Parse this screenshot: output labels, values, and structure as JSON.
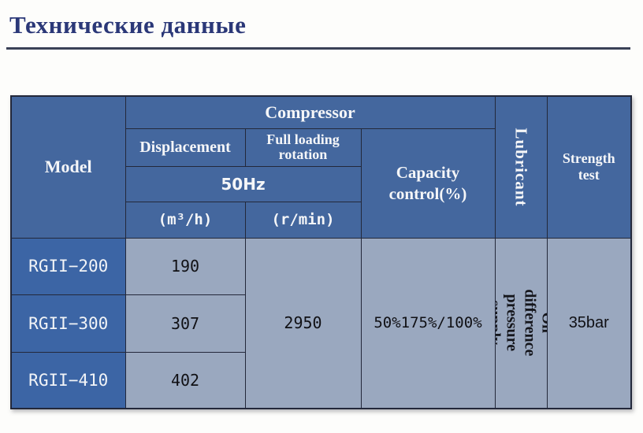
{
  "page": {
    "title": "Технические данные"
  },
  "colors": {
    "title": "#2b3878",
    "rule": "#3a4156",
    "header_blue": "#44679e",
    "model_blue": "#3c65a5",
    "cell_light": "#9aa8bf",
    "border": "#23283a"
  },
  "table": {
    "header": {
      "model": "Model",
      "compressor": "Compressor",
      "displacement": "Displacement",
      "full_loading_rotation": "Full loading rotation",
      "frequency": "50Hz",
      "displacement_unit": "(m³/h)",
      "rotation_unit": "(r/min)",
      "capacity_control": "Capacity control(%)",
      "lubricant": "Lubricant",
      "strength_test": "Strength test"
    },
    "rows": [
      {
        "model": "RGII−200",
        "displacement": "190"
      },
      {
        "model": "RGII−300",
        "displacement": "307"
      },
      {
        "model": "RGII−410",
        "displacement": "402"
      }
    ],
    "shared": {
      "rotation": "2950",
      "capacity": "50%175%/100%",
      "lubricant": "Oil difference pressure supply",
      "strength": "35bar"
    }
  }
}
